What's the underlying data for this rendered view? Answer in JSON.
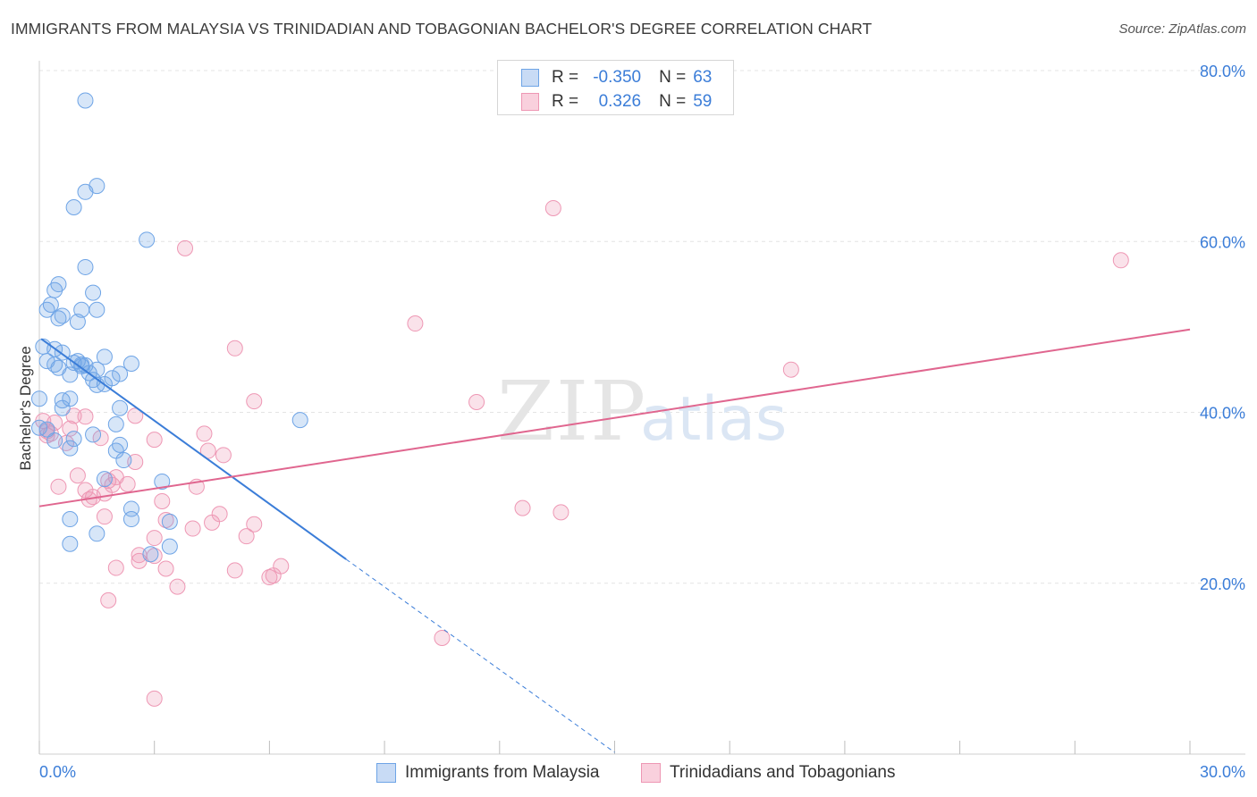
{
  "header": {
    "title": "IMMIGRANTS FROM MALAYSIA VS TRINIDADIAN AND TOBAGONIAN BACHELOR'S DEGREE CORRELATION CHART",
    "source": "Source: ZipAtlas.com"
  },
  "watermark": {
    "zip": "ZIP",
    "atlas": "atlas"
  },
  "legend_top": {
    "rows": [
      {
        "r_label": "R =",
        "r_value": "-0.350",
        "n_label": "N =",
        "n_value": "63",
        "color": "#6ea4e6"
      },
      {
        "r_label": "R =",
        "r_value": "0.326",
        "n_label": "N =",
        "n_value": "59",
        "color": "#ee97b4"
      }
    ]
  },
  "legend_bottom": {
    "items": [
      {
        "label": "Immigrants from Malaysia",
        "color": "#6ea4e6"
      },
      {
        "label": "Trinidadians and Tobagonians",
        "color": "#ee97b4"
      }
    ]
  },
  "chart_data": {
    "type": "scatter",
    "title": "IMMIGRANTS FROM MALAYSIA VS TRINIDADIAN AND TOBAGONIAN BACHELOR'S DEGREE CORRELATION CHART",
    "xlabel": "",
    "ylabel": "Bachelor's Degree",
    "xlim": [
      0,
      30
    ],
    "ylim": [
      0,
      80
    ],
    "x_tick_labels": [
      "0.0%",
      "30.0%"
    ],
    "y_ticks": [
      20,
      40,
      60,
      80
    ],
    "y_tick_labels": [
      "20.0%",
      "40.0%",
      "60.0%",
      "80.0%"
    ],
    "grid": true,
    "legend_position": "bottom",
    "colors": {
      "series1": "#3b7dd8",
      "series2": "#e0668f",
      "tick_label": "#3b7dd8"
    },
    "series": [
      {
        "name": "Immigrants from Malaysia",
        "color": "#6ea4e6",
        "points": [
          [
            1.2,
            76.5
          ],
          [
            1.5,
            66.5
          ],
          [
            1.2,
            65.8
          ],
          [
            0.9,
            64.0
          ],
          [
            2.8,
            60.2
          ],
          [
            1.2,
            57.0
          ],
          [
            0.5,
            55.0
          ],
          [
            0.4,
            54.3
          ],
          [
            1.4,
            54.0
          ],
          [
            0.3,
            52.6
          ],
          [
            0.2,
            52.0
          ],
          [
            1.1,
            52.0
          ],
          [
            1.5,
            52.0
          ],
          [
            0.6,
            51.3
          ],
          [
            0.5,
            51.0
          ],
          [
            1.0,
            50.6
          ],
          [
            0.1,
            47.7
          ],
          [
            0.4,
            47.4
          ],
          [
            0.6,
            47.0
          ],
          [
            1.7,
            46.5
          ],
          [
            0.2,
            46.0
          ],
          [
            1.0,
            46.0
          ],
          [
            0.9,
            45.8
          ],
          [
            0.4,
            45.6
          ],
          [
            1.1,
            45.6
          ],
          [
            1.2,
            45.5
          ],
          [
            2.4,
            45.7
          ],
          [
            1.1,
            45.4
          ],
          [
            0.5,
            45.2
          ],
          [
            1.5,
            45.0
          ],
          [
            1.3,
            44.6
          ],
          [
            2.1,
            44.5
          ],
          [
            0.8,
            44.4
          ],
          [
            1.9,
            44.0
          ],
          [
            1.4,
            43.8
          ],
          [
            1.7,
            43.3
          ],
          [
            1.5,
            43.2
          ],
          [
            0.0,
            41.6
          ],
          [
            0.8,
            41.6
          ],
          [
            0.6,
            41.4
          ],
          [
            0.6,
            40.5
          ],
          [
            2.1,
            40.5
          ],
          [
            6.8,
            39.1
          ],
          [
            2.0,
            38.6
          ],
          [
            0.2,
            38.0
          ],
          [
            1.4,
            37.4
          ],
          [
            0.4,
            36.7
          ],
          [
            2.1,
            36.2
          ],
          [
            0.8,
            35.8
          ],
          [
            2.0,
            35.5
          ],
          [
            2.2,
            34.4
          ],
          [
            1.7,
            32.2
          ],
          [
            3.2,
            31.9
          ],
          [
            2.4,
            28.7
          ],
          [
            0.8,
            27.5
          ],
          [
            2.4,
            27.5
          ],
          [
            3.4,
            27.2
          ],
          [
            1.5,
            25.8
          ],
          [
            0.8,
            24.6
          ],
          [
            3.4,
            24.3
          ],
          [
            2.9,
            23.4
          ],
          [
            0.0,
            38.2
          ],
          [
            0.9,
            36.9
          ]
        ]
      },
      {
        "name": "Trinidadians and Tobagonians",
        "color": "#ee97b4",
        "points": [
          [
            13.4,
            63.9
          ],
          [
            28.2,
            57.8
          ],
          [
            3.8,
            59.2
          ],
          [
            9.8,
            50.4
          ],
          [
            5.1,
            47.5
          ],
          [
            19.6,
            45.0
          ],
          [
            5.6,
            41.3
          ],
          [
            11.4,
            41.2
          ],
          [
            0.9,
            39.6
          ],
          [
            1.2,
            39.5
          ],
          [
            2.5,
            39.6
          ],
          [
            0.1,
            39.0
          ],
          [
            0.4,
            38.8
          ],
          [
            0.8,
            38.1
          ],
          [
            0.2,
            37.8
          ],
          [
            0.3,
            37.5
          ],
          [
            4.3,
            37.5
          ],
          [
            1.6,
            37.0
          ],
          [
            3.0,
            36.8
          ],
          [
            0.7,
            36.4
          ],
          [
            4.4,
            35.5
          ],
          [
            4.8,
            35.0
          ],
          [
            2.5,
            34.2
          ],
          [
            1.0,
            32.6
          ],
          [
            2.0,
            32.4
          ],
          [
            1.8,
            32.0
          ],
          [
            2.3,
            31.6
          ],
          [
            0.5,
            31.3
          ],
          [
            1.9,
            31.5
          ],
          [
            4.1,
            31.3
          ],
          [
            1.2,
            30.9
          ],
          [
            1.7,
            30.5
          ],
          [
            1.4,
            30.1
          ],
          [
            1.3,
            29.8
          ],
          [
            3.2,
            29.6
          ],
          [
            12.6,
            28.8
          ],
          [
            13.6,
            28.3
          ],
          [
            4.7,
            28.1
          ],
          [
            3.3,
            27.4
          ],
          [
            1.7,
            27.8
          ],
          [
            4.5,
            27.1
          ],
          [
            5.6,
            26.9
          ],
          [
            4.0,
            26.4
          ],
          [
            5.4,
            25.5
          ],
          [
            3.0,
            25.3
          ],
          [
            2.6,
            23.3
          ],
          [
            3.0,
            23.2
          ],
          [
            2.6,
            22.6
          ],
          [
            2.0,
            21.8
          ],
          [
            3.3,
            21.7
          ],
          [
            5.1,
            21.5
          ],
          [
            6.3,
            22.0
          ],
          [
            6.1,
            20.9
          ],
          [
            6.0,
            20.7
          ],
          [
            3.6,
            19.6
          ],
          [
            1.8,
            18.0
          ],
          [
            10.5,
            13.6
          ],
          [
            3.0,
            6.5
          ],
          [
            0.2,
            37.3
          ]
        ]
      }
    ],
    "trendlines": [
      {
        "series": "Immigrants from Malaysia",
        "x_start": 0.05,
        "y_start": 48.6,
        "x_solid_end": 8.0,
        "y_solid_end": 22.8,
        "x_dashed_end": 15.0,
        "y_dashed_end": 0.2
      },
      {
        "series": "Trinidadians and Tobagonians",
        "x_start": 0.0,
        "y_start": 29.0,
        "x_end": 30.0,
        "y_end": 49.7
      }
    ]
  }
}
